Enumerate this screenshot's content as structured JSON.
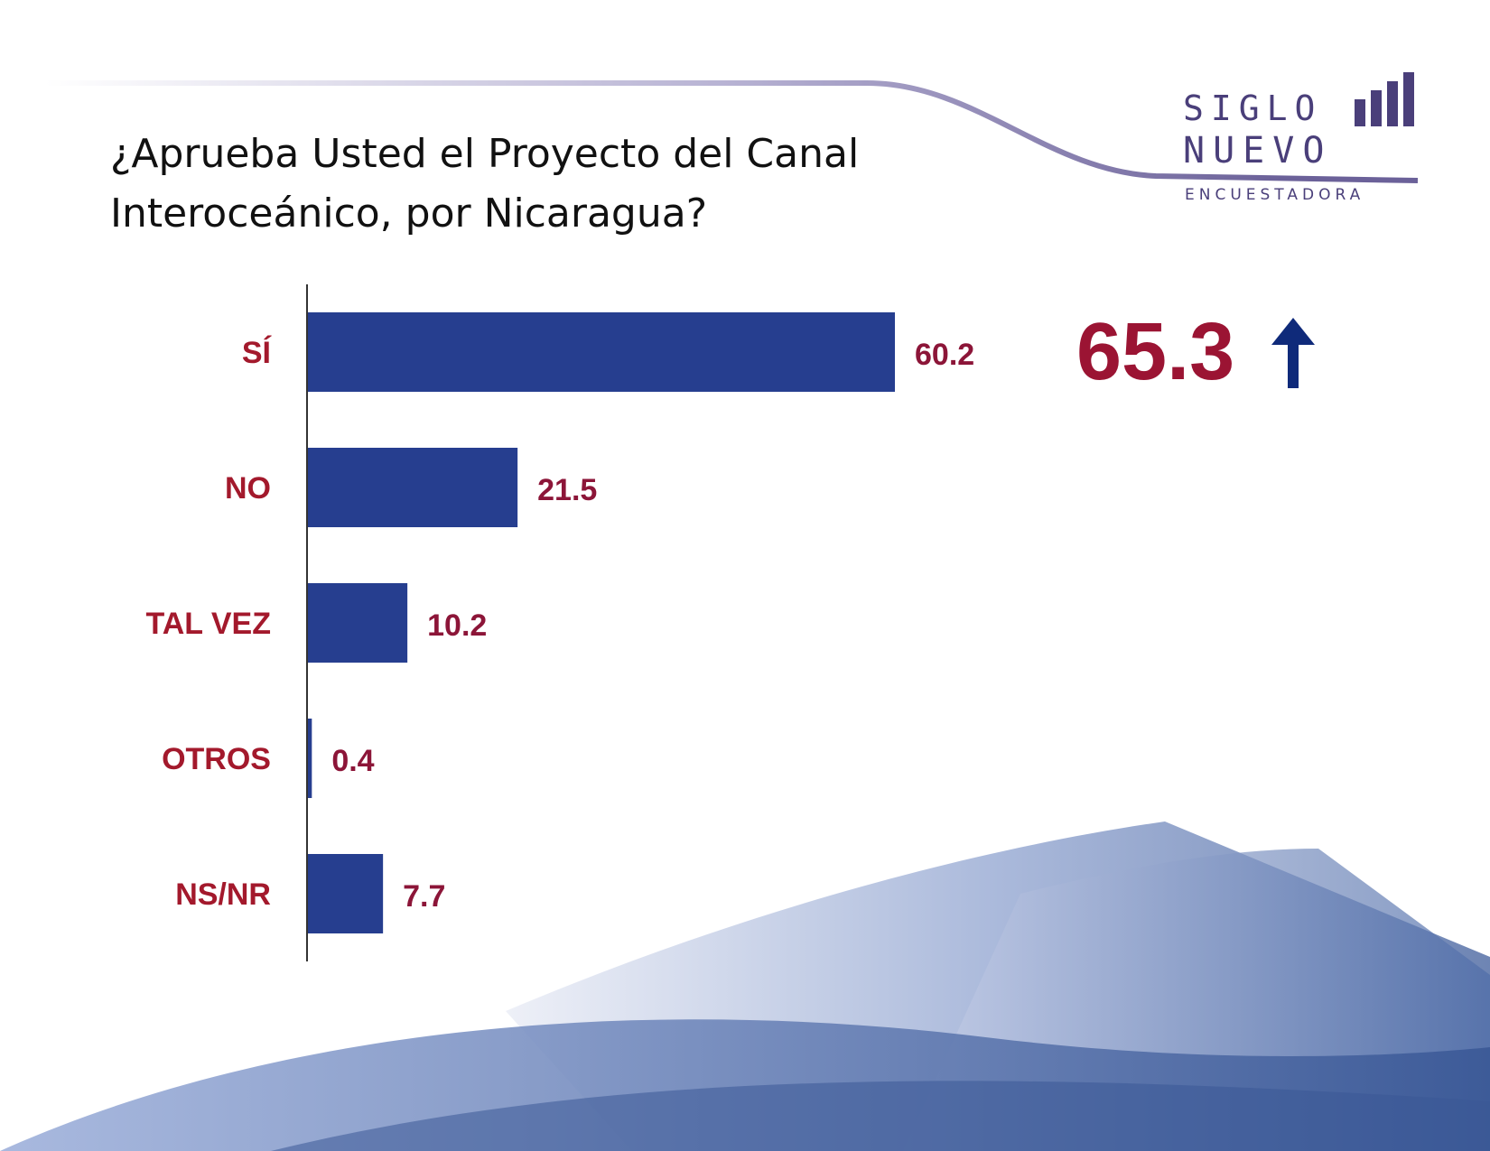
{
  "title": "¿Aprueba Usted el Proyecto del Canal Interoceánico, por Nicaragua?",
  "logo": {
    "line1": "SIGLO",
    "line2": "NUEVO",
    "sub": "ENCUESTADORA"
  },
  "highlight": {
    "value": "65.3",
    "icon": "arrow-up-icon"
  },
  "colors": {
    "bar": "#263e8f",
    "label": "#a3192c",
    "highlight": "#9b1433",
    "arrow": "#0f2a7a"
  },
  "chart_data": {
    "type": "bar",
    "orientation": "horizontal",
    "categories": [
      "SÍ",
      "NO",
      "TAL VEZ",
      "OTROS",
      "NS/NR"
    ],
    "values": [
      60.2,
      21.5,
      10.2,
      0.4,
      7.7
    ],
    "value_labels": [
      "60.2",
      "21.5",
      "10.2",
      "0.4",
      "7.7"
    ],
    "xlim": [
      0,
      100
    ],
    "grid": false
  }
}
